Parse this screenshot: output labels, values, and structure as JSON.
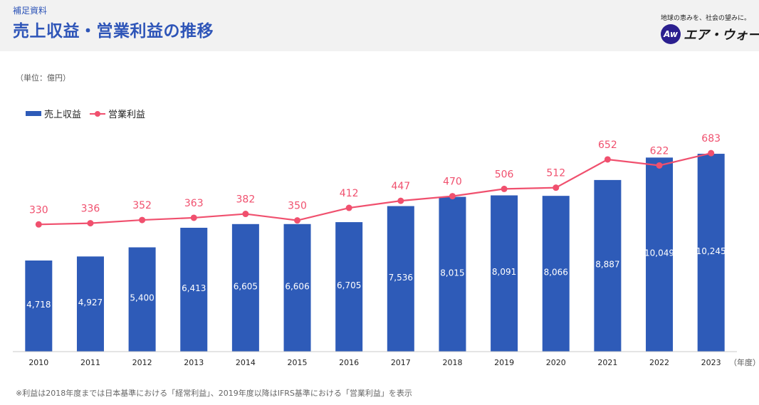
{
  "header": {
    "subtitle": "補足資料",
    "title": "売上収益・営業利益の推移",
    "tagline": "地球の恵みを、社会の望みに。",
    "logo_mark": "Aw",
    "logo_text": "エア・ウォーター"
  },
  "unit_label": "（単位：億円）",
  "footnote": "※利益は2018年度までは日本基準における「経常利益」、2019年度以降はIFRS基準における「営業利益」を表示",
  "colors": {
    "bar": "#2e5bb8",
    "line": "#f0506e",
    "title": "#2e55b8"
  },
  "chart_data": {
    "type": "bar",
    "categories": [
      "2010",
      "2011",
      "2012",
      "2013",
      "2014",
      "2015",
      "2016",
      "2017",
      "2018",
      "2019",
      "2020",
      "2021",
      "2022",
      "2023"
    ],
    "series": [
      {
        "name": "売上収益",
        "type": "bar",
        "values": [
          4718,
          4927,
          5400,
          6413,
          6605,
          6606,
          6705,
          7536,
          8015,
          8091,
          8066,
          8887,
          10049,
          10245
        ],
        "labels": [
          "4,718",
          "4,927",
          "5,400",
          "6,413",
          "6,605",
          "6,606",
          "6,705",
          "7,536",
          "8,015",
          "8,091",
          "8,066",
          "8,887",
          "10,049",
          "10,245"
        ]
      },
      {
        "name": "営業利益",
        "type": "line",
        "values": [
          330,
          336,
          352,
          363,
          382,
          350,
          412,
          447,
          470,
          506,
          512,
          652,
          622,
          683
        ],
        "labels": [
          "330",
          "336",
          "352",
          "363",
          "382",
          "350",
          "412",
          "447",
          "470",
          "506",
          "512",
          "652",
          "622",
          "683"
        ]
      }
    ],
    "xlabel": "（年度）",
    "ylabel": "",
    "bar_ylim": [
      0,
      11500
    ],
    "line_ylim": [
      -300,
      800
    ],
    "legend": "top-left"
  }
}
